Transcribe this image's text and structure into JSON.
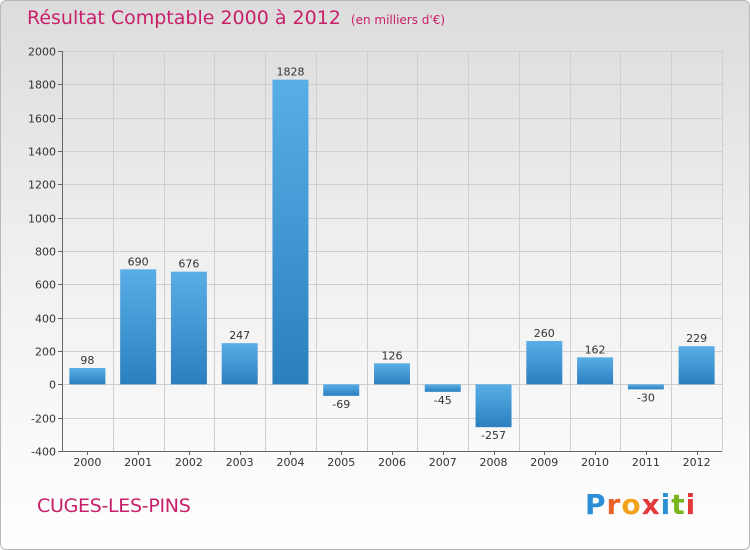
{
  "header": {
    "title": "Résultat Comptable 2000 à 2012",
    "subtitle": "(en milliers d'€)"
  },
  "footer": {
    "place": "CUGES-LES-PINS",
    "brand": "Proxiti"
  },
  "colors": {
    "title": "#c8206a",
    "bar_light": "#5aaee6",
    "bar_dark": "#2b7fbf",
    "grid": "#cfcfcf"
  },
  "chart_data": {
    "type": "bar",
    "title": "Résultat Comptable 2000 à 2012",
    "xlabel": "",
    "ylabel": "",
    "categories": [
      "2000",
      "2001",
      "2002",
      "2003",
      "2004",
      "2005",
      "2006",
      "2007",
      "2008",
      "2009",
      "2010",
      "2011",
      "2012"
    ],
    "values": [
      98,
      690,
      676,
      247,
      1828,
      -69,
      126,
      -45,
      -257,
      260,
      162,
      -30,
      229
    ],
    "ylim": [
      -400,
      2000
    ],
    "yticks": [
      -400,
      -200,
      0,
      200,
      400,
      600,
      800,
      1000,
      1200,
      1400,
      1600,
      1800,
      2000
    ],
    "grid": true
  }
}
